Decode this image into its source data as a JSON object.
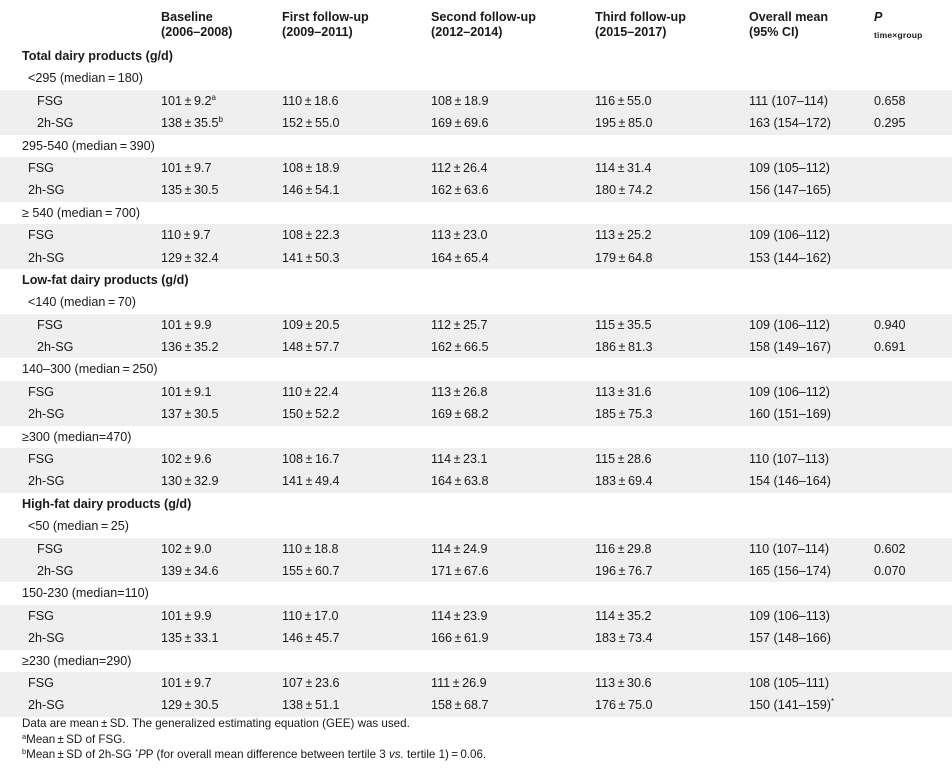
{
  "header": {
    "col1": [
      "Baseline",
      "(2006–2008)"
    ],
    "col2": [
      "First follow-up",
      "(2009–2011)"
    ],
    "col3": [
      "Second follow-up",
      "(2012–2014)"
    ],
    "col4": [
      "Third follow-up",
      "(2015–2017)"
    ],
    "col5": [
      "Overall mean",
      "(95% CI)"
    ],
    "col6": "P",
    "col6_sub": "time×group"
  },
  "rows": [
    {
      "kind": "section",
      "label": "Total dairy products (g/d)"
    },
    {
      "kind": "group",
      "label": "<295 (median = 180)",
      "indent": 1
    },
    {
      "kind": "data",
      "label": "FSG",
      "indent": 2,
      "v": [
        "101 ± 9.2",
        "110 ± 18.6",
        "108 ± 18.9",
        "116 ± 55.0",
        "111 (107–114)",
        "0.658"
      ],
      "sup": "a"
    },
    {
      "kind": "data",
      "label": "2h-SG",
      "indent": 2,
      "v": [
        "138 ± 35.5",
        "152 ± 55.0",
        "169 ± 69.6",
        "195 ± 85.0",
        "163 (154–172)",
        "0.295"
      ],
      "sup": "b"
    },
    {
      "kind": "group",
      "label": "295-540 (median = 390)",
      "indent": 0
    },
    {
      "kind": "data",
      "label": "FSG",
      "indent": 3,
      "v": [
        "101 ± 9.7",
        "108 ± 18.9",
        "112 ± 26.4",
        "114 ± 31.4",
        "109 (105–112)",
        ""
      ]
    },
    {
      "kind": "data",
      "label": "2h-SG",
      "indent": 3,
      "v": [
        "135 ± 30.5",
        "146 ± 54.1",
        "162 ± 63.6",
        "180 ± 74.2",
        "156 (147–165)",
        ""
      ]
    },
    {
      "kind": "group",
      "label": "≥ 540 (median = 700)",
      "indent": 0
    },
    {
      "kind": "data",
      "label": "FSG",
      "indent": 3,
      "v": [
        "110 ± 9.7",
        "108 ± 22.3",
        "113 ± 23.0",
        "113 ± 25.2",
        "109 (106–112)",
        ""
      ]
    },
    {
      "kind": "data",
      "label": "2h-SG",
      "indent": 3,
      "v": [
        "129 ± 32.4",
        "141 ± 50.3",
        "164 ± 65.4",
        "179 ± 64.8",
        "153 (144–162)",
        ""
      ]
    },
    {
      "kind": "section",
      "label": "Low-fat dairy products (g/d)"
    },
    {
      "kind": "group",
      "label": "<140 (median = 70)",
      "indent": 1
    },
    {
      "kind": "data",
      "label": "FSG",
      "indent": 2,
      "v": [
        "101 ± 9.9",
        "109 ± 20.5",
        "112 ± 25.7",
        "115 ± 35.5",
        "109 (106–112)",
        "0.940"
      ]
    },
    {
      "kind": "data",
      "label": "2h-SG",
      "indent": 2,
      "v": [
        "136 ± 35.2",
        "148 ± 57.7",
        "162 ± 66.5",
        "186 ± 81.3",
        "158 (149–167)",
        "0.691"
      ]
    },
    {
      "kind": "group",
      "label": "140–300 (median = 250)",
      "indent": 0
    },
    {
      "kind": "data",
      "label": "FSG",
      "indent": 3,
      "v": [
        "101 ± 9.1",
        "110 ± 22.4",
        "113 ± 26.8",
        "113 ± 31.6",
        "109 (106–112)",
        ""
      ]
    },
    {
      "kind": "data",
      "label": "2h-SG",
      "indent": 3,
      "v": [
        "137 ± 30.5",
        "150 ± 52.2",
        "169 ± 68.2",
        "185 ± 75.3",
        "160 (151–169)",
        ""
      ]
    },
    {
      "kind": "group",
      "label": "≥300 (median=470)",
      "indent": 0
    },
    {
      "kind": "data",
      "label": "FSG",
      "indent": 3,
      "v": [
        "102 ± 9.6",
        "108 ± 16.7",
        "114 ± 23.1",
        "115 ± 28.6",
        "110 (107–113)",
        ""
      ]
    },
    {
      "kind": "data",
      "label": "2h-SG",
      "indent": 3,
      "v": [
        "130 ± 32.9",
        "141 ± 49.4",
        "164 ± 63.8",
        "183 ± 69.4",
        "154 (146–164)",
        ""
      ]
    },
    {
      "kind": "section",
      "label": "High-fat dairy products (g/d)"
    },
    {
      "kind": "group",
      "label": "<50 (median = 25)",
      "indent": 1
    },
    {
      "kind": "data",
      "label": "FSG",
      "indent": 2,
      "v": [
        "102 ± 9.0",
        "110 ± 18.8",
        "114 ± 24.9",
        "116 ± 29.8",
        "110 (107–114)",
        "0.602"
      ]
    },
    {
      "kind": "data",
      "label": "2h-SG",
      "indent": 2,
      "v": [
        "139 ± 34.6",
        "155 ± 60.7",
        "171 ± 67.6",
        "196 ± 76.7",
        "165 (156–174)",
        "0.070"
      ]
    },
    {
      "kind": "group",
      "label": "150-230 (median=110)",
      "indent": 0
    },
    {
      "kind": "data",
      "label": "FSG",
      "indent": 3,
      "v": [
        "101 ± 9.9",
        "110 ± 17.0",
        "114 ± 23.9",
        "114 ± 35.2",
        "109 (106–113)",
        ""
      ]
    },
    {
      "kind": "data",
      "label": "2h-SG",
      "indent": 3,
      "v": [
        "135 ± 33.1",
        "146 ± 45.7",
        "166 ± 61.9",
        "183 ± 73.4",
        "157 (148–166)",
        ""
      ]
    },
    {
      "kind": "group",
      "label": "≥230 (median=290)",
      "indent": 0
    },
    {
      "kind": "data",
      "label": "FSG",
      "indent": 3,
      "v": [
        "101 ± 9.7",
        "107 ± 23.6",
        "111 ± 26.9",
        "113 ± 30.6",
        "108 (105–111)",
        ""
      ]
    },
    {
      "kind": "data",
      "label": "2h-SG",
      "indent": 3,
      "v": [
        "129 ± 30.5",
        "138 ± 51.1",
        "158 ± 68.7",
        "176 ± 75.0",
        "150 (141–159)",
        ""
      ],
      "ci_sup": "*"
    }
  ],
  "footnotes": {
    "line1": "Data are mean ± SD. The generalized estimating equation (GEE) was used.",
    "line2_sup": "a",
    "line2": "Mean ± SD of FSG.",
    "line3_sup": "b",
    "line3a": "Mean ± SD of 2h-SG",
    "line3_star": "*",
    "line3b": "P (for overall mean difference between tertile 3 ",
    "line3_vs": "vs.",
    "line3c": " tertile 1) = 0.06."
  }
}
